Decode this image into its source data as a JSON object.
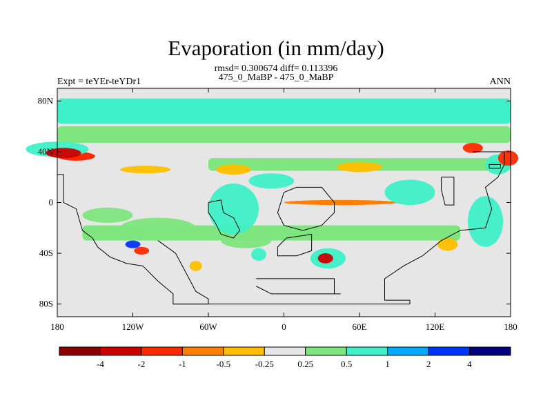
{
  "chart_data": {
    "type": "heatmap",
    "title": "Evaporation (in mm/day)",
    "stats_text": "rmsd= 0.300674 diff= 0.113396",
    "subtitle": "475_0_MaBP - 475_0_MaBP",
    "left_label": "Expt = teYEr-teYDr1",
    "right_label": "ANN",
    "x_ticks": [
      "180",
      "120W",
      "60W",
      "0",
      "60E",
      "120E",
      "180"
    ],
    "x_tick_values": [
      -180,
      -120,
      -60,
      0,
      60,
      120,
      180
    ],
    "y_ticks": [
      "80N",
      "40N",
      "0",
      "40S",
      "80S"
    ],
    "y_tick_values": [
      80,
      40,
      0,
      -40,
      -80
    ],
    "xlim": [
      -180,
      180
    ],
    "ylim": [
      -90,
      90
    ],
    "colorbar": {
      "labels": [
        "-4",
        "-2",
        "-1",
        "-0.5",
        "-0.25",
        "0.25",
        "0.5",
        "1",
        "2",
        "4"
      ],
      "colors": [
        "#8b0000",
        "#cc0000",
        "#ff2a00",
        "#ff7f00",
        "#ffbf00",
        "#e6e6e6",
        "#7fe57f",
        "#3ff0c8",
        "#00aaff",
        "#0033ff",
        "#000080"
      ]
    },
    "background_level": "-0.25 to 0.25",
    "regions": [
      {
        "name": "arctic-band-1",
        "lon": [
          -180,
          180
        ],
        "lat": [
          62,
          82
        ],
        "value": 0.7
      },
      {
        "name": "arctic-band-2",
        "lon": [
          -180,
          180
        ],
        "lat": [
          47,
          60
        ],
        "value": 0.3
      },
      {
        "name": "midlat-north",
        "lon": [
          -60,
          180
        ],
        "lat": [
          25,
          35
        ],
        "value": 0.3
      },
      {
        "name": "north-pacific-west",
        "lon": [
          -180,
          -150
        ],
        "lat": [
          33,
          40
        ],
        "value": -1.5
      },
      {
        "name": "equatorial-atlantic",
        "lon": [
          0,
          90
        ],
        "lat": [
          -2,
          2
        ],
        "value": -0.8
      },
      {
        "name": "south-atlantic-anomaly",
        "lon": [
          25,
          40
        ],
        "lat": [
          -48,
          -40
        ],
        "value": -1.5
      },
      {
        "name": "southern-ocean",
        "lon": [
          -160,
          140
        ],
        "lat": [
          -30,
          -18
        ],
        "value": 0.3
      }
    ]
  }
}
